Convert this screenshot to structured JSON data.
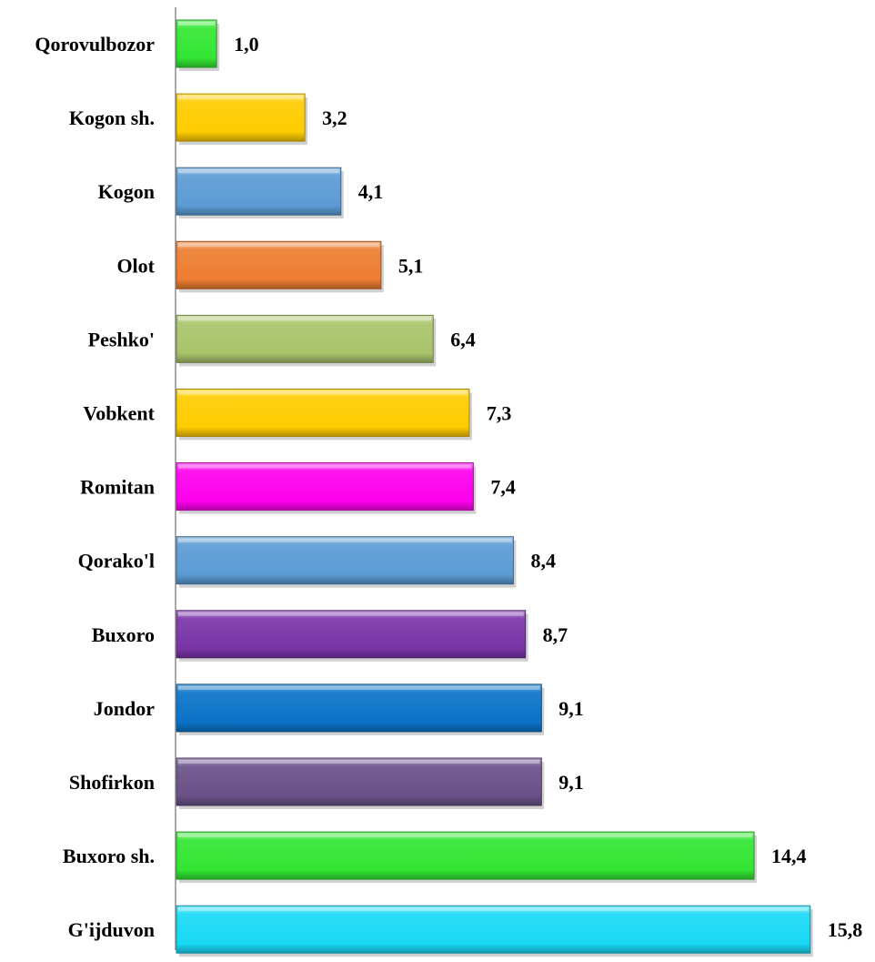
{
  "chart_data": {
    "type": "bar",
    "orientation": "horizontal",
    "categories": [
      "Qorovulbozor",
      "Kogon sh.",
      "Kogon",
      "Olot",
      "Peshko'",
      "Vobkent",
      "Romitan",
      "Qorako'l",
      "Buxoro",
      "Jondor",
      "Shofirkon",
      "Buxoro sh.",
      "G'ijduvon"
    ],
    "values": [
      1.0,
      3.2,
      4.1,
      5.1,
      6.4,
      7.3,
      7.4,
      8.4,
      8.7,
      9.1,
      9.1,
      14.4,
      15.8
    ],
    "value_labels": [
      "1,0",
      "3,2",
      "4,1",
      "5,1",
      "6,4",
      "7,3",
      "7,4",
      "8,4",
      "8,7",
      "9,1",
      "9,1",
      "14,4",
      "15,8"
    ],
    "colors": [
      "#33e633",
      "#ffcc00",
      "#5b9bd5",
      "#ed7d31",
      "#a9c46b",
      "#ffcc00",
      "#ff00ee",
      "#5b9bd5",
      "#7a35a8",
      "#0a73c8",
      "#6a5188",
      "#33e633",
      "#19d9f5"
    ],
    "title": "",
    "xlabel": "",
    "ylabel": "",
    "xlim": [
      0,
      16
    ],
    "grid": false,
    "legend": "none"
  }
}
